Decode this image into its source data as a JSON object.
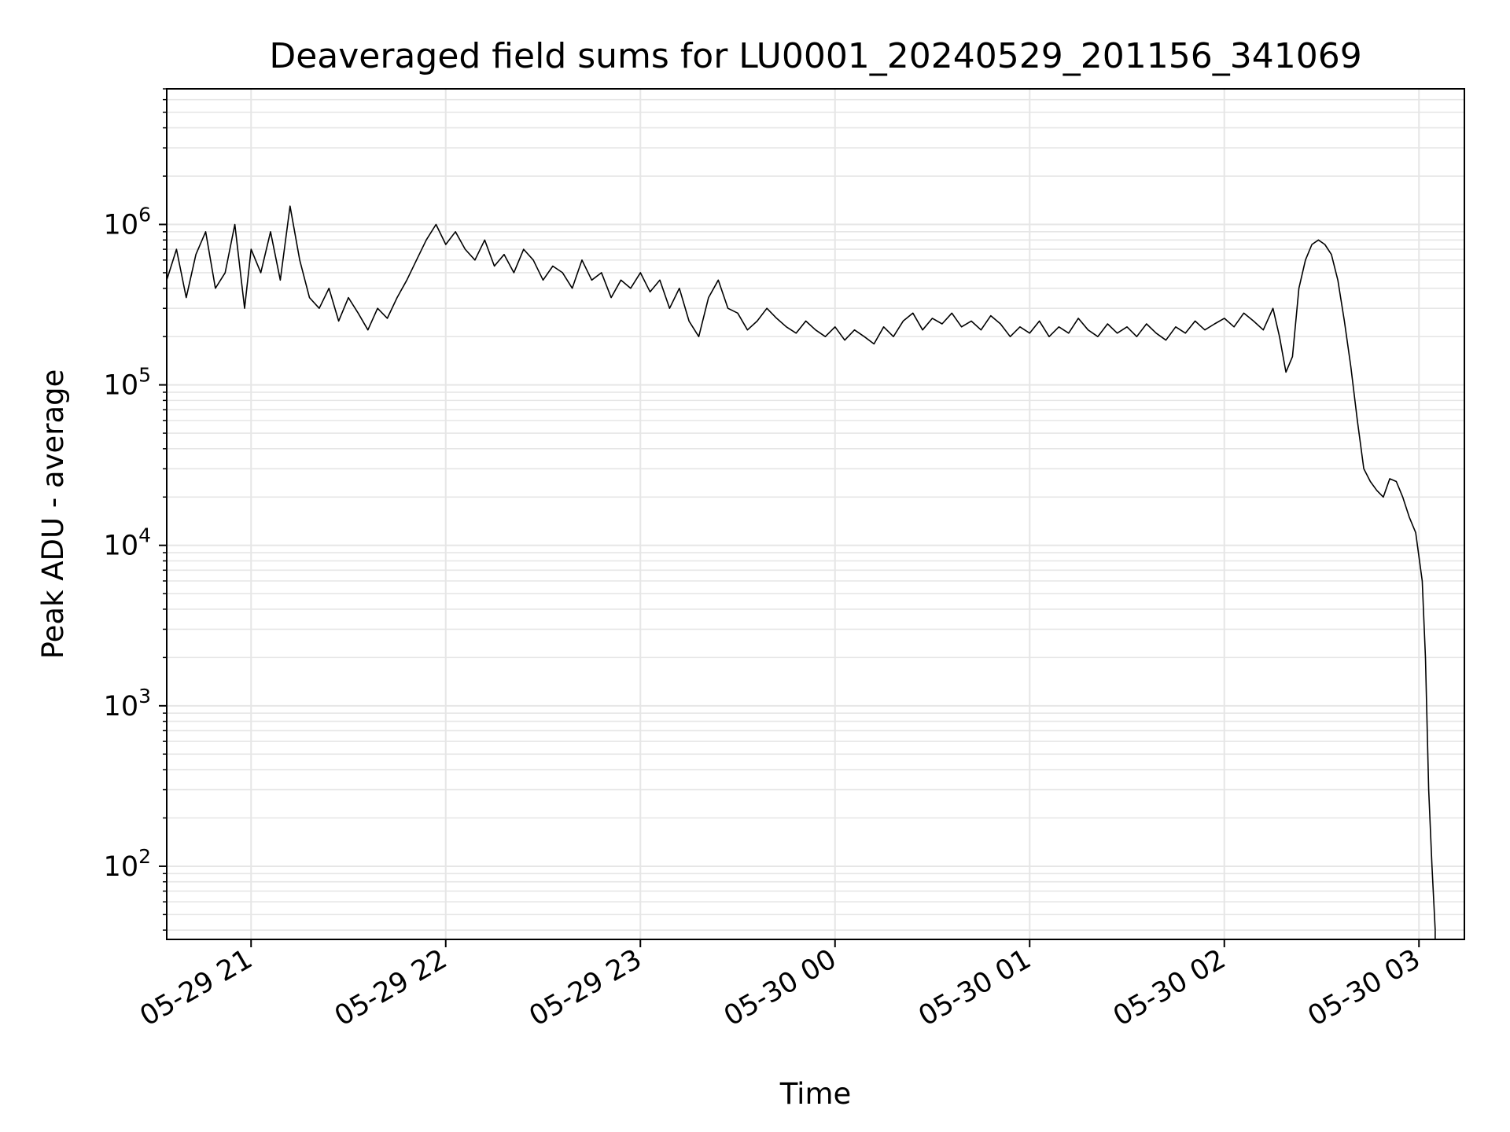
{
  "chart_data": {
    "type": "line",
    "title": "Deaveraged field sums for LU0001_20240529_201156_341069",
    "xlabel": "Time",
    "ylabel": "Peak ADU - average",
    "x_scale": "time",
    "y_scale": "log",
    "xlim": [
      "2024-05-29 20:34",
      "2024-05-30 03:14"
    ],
    "ylim": [
      35,
      7000000
    ],
    "grid": true,
    "x_tick_labels": [
      "05-29 21",
      "05-29 22",
      "05-29 23",
      "05-30 00",
      "05-30 01",
      "05-30 02",
      "05-30 03"
    ],
    "y_tick_labels": [
      {
        "base": "10",
        "exp": "2"
      },
      {
        "base": "10",
        "exp": "3"
      },
      {
        "base": "10",
        "exp": "4"
      },
      {
        "base": "10",
        "exp": "5"
      },
      {
        "base": "10",
        "exp": "6"
      }
    ],
    "line_color": "#000000",
    "grid_color": "#e6e6e6",
    "series": [
      {
        "points": [
          [
            "05-29 20:34",
            450000
          ],
          [
            "05-29 20:37",
            700000
          ],
          [
            "05-29 20:40",
            350000
          ],
          [
            "05-29 20:43",
            650000
          ],
          [
            "05-29 20:46",
            900000
          ],
          [
            "05-29 20:49",
            400000
          ],
          [
            "05-29 20:52",
            500000
          ],
          [
            "05-29 20:55",
            1000000
          ],
          [
            "05-29 20:58",
            300000
          ],
          [
            "05-29 21:00",
            700000
          ],
          [
            "05-29 21:03",
            500000
          ],
          [
            "05-29 21:06",
            900000
          ],
          [
            "05-29 21:09",
            450000
          ],
          [
            "05-29 21:12",
            1300000
          ],
          [
            "05-29 21:15",
            600000
          ],
          [
            "05-29 21:18",
            350000
          ],
          [
            "05-29 21:21",
            300000
          ],
          [
            "05-29 21:24",
            400000
          ],
          [
            "05-29 21:27",
            250000
          ],
          [
            "05-29 21:30",
            350000
          ],
          [
            "05-29 21:33",
            280000
          ],
          [
            "05-29 21:36",
            220000
          ],
          [
            "05-29 21:39",
            300000
          ],
          [
            "05-29 21:42",
            260000
          ],
          [
            "05-29 21:45",
            350000
          ],
          [
            "05-29 21:48",
            450000
          ],
          [
            "05-29 21:51",
            600000
          ],
          [
            "05-29 21:54",
            800000
          ],
          [
            "05-29 21:57",
            1000000
          ],
          [
            "05-29 22:00",
            750000
          ],
          [
            "05-29 22:03",
            900000
          ],
          [
            "05-29 22:06",
            700000
          ],
          [
            "05-29 22:09",
            600000
          ],
          [
            "05-29 22:12",
            800000
          ],
          [
            "05-29 22:15",
            550000
          ],
          [
            "05-29 22:18",
            650000
          ],
          [
            "05-29 22:21",
            500000
          ],
          [
            "05-29 22:24",
            700000
          ],
          [
            "05-29 22:27",
            600000
          ],
          [
            "05-29 22:30",
            450000
          ],
          [
            "05-29 22:33",
            550000
          ],
          [
            "05-29 22:36",
            500000
          ],
          [
            "05-29 22:39",
            400000
          ],
          [
            "05-29 22:42",
            600000
          ],
          [
            "05-29 22:45",
            450000
          ],
          [
            "05-29 22:48",
            500000
          ],
          [
            "05-29 22:51",
            350000
          ],
          [
            "05-29 22:54",
            450000
          ],
          [
            "05-29 22:57",
            400000
          ],
          [
            "05-29 23:00",
            500000
          ],
          [
            "05-29 23:03",
            380000
          ],
          [
            "05-29 23:06",
            450000
          ],
          [
            "05-29 23:09",
            300000
          ],
          [
            "05-29 23:12",
            400000
          ],
          [
            "05-29 23:15",
            250000
          ],
          [
            "05-29 23:18",
            200000
          ],
          [
            "05-29 23:21",
            350000
          ],
          [
            "05-29 23:24",
            450000
          ],
          [
            "05-29 23:27",
            300000
          ],
          [
            "05-29 23:30",
            280000
          ],
          [
            "05-29 23:33",
            220000
          ],
          [
            "05-29 23:36",
            250000
          ],
          [
            "05-29 23:39",
            300000
          ],
          [
            "05-29 23:42",
            260000
          ],
          [
            "05-29 23:45",
            230000
          ],
          [
            "05-29 23:48",
            210000
          ],
          [
            "05-29 23:51",
            250000
          ],
          [
            "05-29 23:54",
            220000
          ],
          [
            "05-29 23:57",
            200000
          ],
          [
            "05-30 00:00",
            230000
          ],
          [
            "05-30 00:03",
            190000
          ],
          [
            "05-30 00:06",
            220000
          ],
          [
            "05-30 00:09",
            200000
          ],
          [
            "05-30 00:12",
            180000
          ],
          [
            "05-30 00:15",
            230000
          ],
          [
            "05-30 00:18",
            200000
          ],
          [
            "05-30 00:21",
            250000
          ],
          [
            "05-30 00:24",
            280000
          ],
          [
            "05-30 00:27",
            220000
          ],
          [
            "05-30 00:30",
            260000
          ],
          [
            "05-30 00:33",
            240000
          ],
          [
            "05-30 00:36",
            280000
          ],
          [
            "05-30 00:39",
            230000
          ],
          [
            "05-30 00:42",
            250000
          ],
          [
            "05-30 00:45",
            220000
          ],
          [
            "05-30 00:48",
            270000
          ],
          [
            "05-30 00:51",
            240000
          ],
          [
            "05-30 00:54",
            200000
          ],
          [
            "05-30 00:57",
            230000
          ],
          [
            "05-30 01:00",
            210000
          ],
          [
            "05-30 01:03",
            250000
          ],
          [
            "05-30 01:06",
            200000
          ],
          [
            "05-30 01:09",
            230000
          ],
          [
            "05-30 01:12",
            210000
          ],
          [
            "05-30 01:15",
            260000
          ],
          [
            "05-30 01:18",
            220000
          ],
          [
            "05-30 01:21",
            200000
          ],
          [
            "05-30 01:24",
            240000
          ],
          [
            "05-30 01:27",
            210000
          ],
          [
            "05-30 01:30",
            230000
          ],
          [
            "05-30 01:33",
            200000
          ],
          [
            "05-30 01:36",
            240000
          ],
          [
            "05-30 01:39",
            210000
          ],
          [
            "05-30 01:42",
            190000
          ],
          [
            "05-30 01:45",
            230000
          ],
          [
            "05-30 01:48",
            210000
          ],
          [
            "05-30 01:51",
            250000
          ],
          [
            "05-30 01:54",
            220000
          ],
          [
            "05-30 01:57",
            240000
          ],
          [
            "05-30 02:00",
            260000
          ],
          [
            "05-30 02:03",
            230000
          ],
          [
            "05-30 02:06",
            280000
          ],
          [
            "05-30 02:09",
            250000
          ],
          [
            "05-30 02:12",
            220000
          ],
          [
            "05-30 02:15",
            300000
          ],
          [
            "05-30 02:17",
            200000
          ],
          [
            "05-30 02:19",
            120000
          ],
          [
            "05-30 02:21",
            150000
          ],
          [
            "05-30 02:23",
            400000
          ],
          [
            "05-30 02:25",
            600000
          ],
          [
            "05-30 02:27",
            750000
          ],
          [
            "05-30 02:29",
            800000
          ],
          [
            "05-30 02:31",
            750000
          ],
          [
            "05-30 02:33",
            650000
          ],
          [
            "05-30 02:35",
            450000
          ],
          [
            "05-30 02:37",
            250000
          ],
          [
            "05-30 02:39",
            130000
          ],
          [
            "05-30 02:41",
            60000
          ],
          [
            "05-30 02:43",
            30000
          ],
          [
            "05-30 02:45",
            25000
          ],
          [
            "05-30 02:47",
            22000
          ],
          [
            "05-30 02:49",
            20000
          ],
          [
            "05-30 02:51",
            26000
          ],
          [
            "05-30 02:53",
            25000
          ],
          [
            "05-30 02:55",
            20000
          ],
          [
            "05-30 02:57",
            15000
          ],
          [
            "05-30 02:59",
            12000
          ],
          [
            "05-30 03:01",
            6000
          ],
          [
            "05-30 03:02",
            2000
          ],
          [
            "05-30 03:03",
            300
          ],
          [
            "05-30 03:04",
            100
          ],
          [
            "05-30 03:05",
            40
          ]
        ]
      }
    ]
  }
}
